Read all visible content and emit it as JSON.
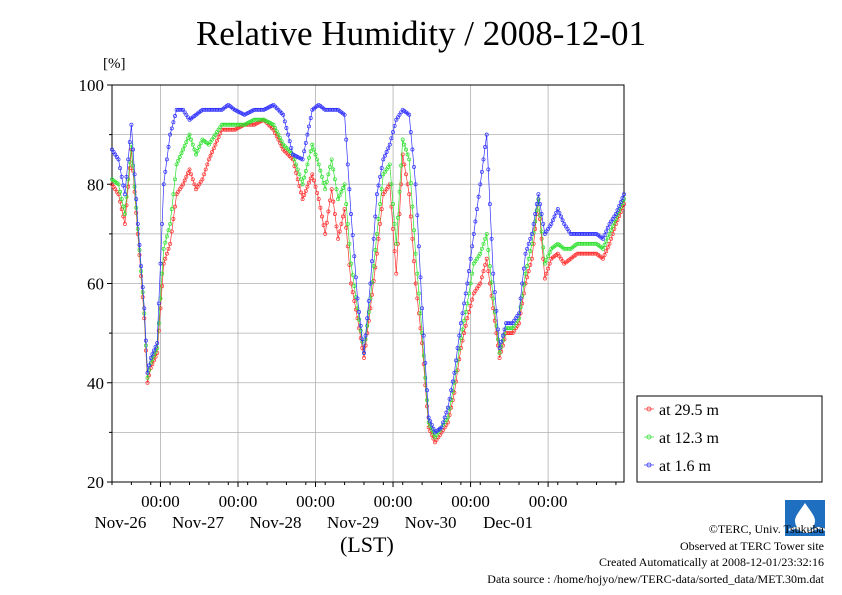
{
  "chart_data": {
    "type": "line",
    "title": "Relative Humidity / 2008-12-01",
    "ylabel": "[%]",
    "xlabel": "(LST)",
    "ylim": [
      20,
      100
    ],
    "yticks": [
      "20",
      "40",
      "60",
      "80",
      "100"
    ],
    "xlim": [
      "2008-11-25T09:00",
      "2008-12-01T23:30"
    ],
    "xticks": [
      {
        "time": "00:00",
        "date": "Nov-26"
      },
      {
        "time": "00:00",
        "date": "Nov-27"
      },
      {
        "time": "00:00",
        "date": "Nov-28"
      },
      {
        "time": "00:00",
        "date": "Nov-29"
      },
      {
        "time": "00:00",
        "date": "Nov-30"
      },
      {
        "time": "00:00",
        "date": "Dec-01"
      }
    ],
    "grid": true,
    "legend_position": "right",
    "series": [
      {
        "name": "at 29.5 m",
        "color": "#ff3030",
        "x": [
          "11-25 09:00",
          "11-25 11:00",
          "11-25 13:00",
          "11-25 15:00",
          "11-25 17:00",
          "11-25 19:00",
          "11-25 20:00",
          "11-25 21:00",
          "11-25 23:00",
          "11-26 01:00",
          "11-26 03:00",
          "11-26 05:00",
          "11-26 07:00",
          "11-26 09:00",
          "11-26 11:00",
          "11-26 13:00",
          "11-26 15:00",
          "11-26 17:00",
          "11-26 19:00",
          "11-26 21:00",
          "11-26 23:00",
          "11-27 02:00",
          "11-27 05:00",
          "11-27 08:00",
          "11-27 11:00",
          "11-27 14:00",
          "11-27 17:00",
          "11-27 20:00",
          "11-27 23:00",
          "11-28 01:00",
          "11-28 03:00",
          "11-28 05:00",
          "11-28 07:00",
          "11-28 09:00",
          "11-28 11:00",
          "11-28 13:00",
          "11-28 15:00",
          "11-28 17:00",
          "11-28 19:00",
          "11-28 21:00",
          "11-28 23:00",
          "11-29 01:00",
          "11-29 03:00",
          "11-29 05:00",
          "11-29 07:00",
          "11-29 09:00",
          "11-29 11:00",
          "11-29 13:00",
          "11-29 15:00",
          "11-29 17:00",
          "11-29 19:00",
          "11-29 21:00",
          "11-29 23:00",
          "11-30 01:00",
          "11-30 03:00",
          "11-30 05:00",
          "11-30 07:00",
          "11-30 09:00",
          "11-30 11:00",
          "11-30 13:00",
          "11-30 15:00",
          "11-30 17:00",
          "11-30 19:00",
          "11-30 21:00",
          "11-30 23:00",
          "12-01 01:00",
          "12-01 03:00",
          "12-01 05:00",
          "12-01 07:00",
          "12-01 09:00",
          "12-01 11:00",
          "12-01 13:00",
          "12-01 15:00",
          "12-01 17:00",
          "12-01 19:00",
          "12-01 21:00",
          "12-01 23:30"
        ],
        "values": [
          80,
          78,
          72,
          87,
          70,
          53,
          40,
          43,
          46,
          64,
          68,
          78,
          80,
          83,
          79,
          81,
          85,
          88,
          91,
          91,
          91,
          92,
          92,
          93,
          91,
          87,
          85,
          77,
          82,
          77,
          70,
          79,
          69,
          75,
          60,
          53,
          45,
          55,
          66,
          78,
          80,
          62,
          86,
          78,
          60,
          48,
          31,
          28,
          30,
          32,
          38,
          47,
          53,
          58,
          60,
          65,
          55,
          45,
          50,
          50,
          52,
          60,
          65,
          77,
          61,
          65,
          66,
          64,
          65,
          66,
          66,
          66,
          66,
          65,
          68,
          72,
          76
        ]
      },
      {
        "name": "at 12.3 m",
        "color": "#30e030",
        "x": [
          "11-25 09:00",
          "11-25 11:00",
          "11-25 13:00",
          "11-25 15:00",
          "11-25 17:00",
          "11-25 19:00",
          "11-25 20:00",
          "11-25 21:00",
          "11-25 23:00",
          "11-26 01:00",
          "11-26 03:00",
          "11-26 05:00",
          "11-26 07:00",
          "11-26 09:00",
          "11-26 11:00",
          "11-26 13:00",
          "11-26 15:00",
          "11-26 17:00",
          "11-26 19:00",
          "11-26 21:00",
          "11-26 23:00",
          "11-27 02:00",
          "11-27 05:00",
          "11-27 08:00",
          "11-27 11:00",
          "11-27 14:00",
          "11-27 17:00",
          "11-27 20:00",
          "11-27 23:00",
          "11-28 01:00",
          "11-28 03:00",
          "11-28 05:00",
          "11-28 07:00",
          "11-28 09:00",
          "11-28 11:00",
          "11-28 13:00",
          "11-28 15:00",
          "11-28 17:00",
          "11-28 19:00",
          "11-28 21:00",
          "11-28 23:00",
          "11-29 01:00",
          "11-29 03:00",
          "11-29 05:00",
          "11-29 07:00",
          "11-29 09:00",
          "11-29 11:00",
          "11-29 13:00",
          "11-29 15:00",
          "11-29 17:00",
          "11-29 19:00",
          "11-29 21:00",
          "11-29 23:00",
          "11-30 01:00",
          "11-30 03:00",
          "11-30 05:00",
          "11-30 07:00",
          "11-30 09:00",
          "11-30 11:00",
          "11-30 13:00",
          "11-30 15:00",
          "11-30 17:00",
          "11-30 19:00",
          "11-30 21:00",
          "11-30 23:00",
          "12-01 01:00",
          "12-01 03:00",
          "12-01 05:00",
          "12-01 07:00",
          "12-01 09:00",
          "12-01 11:00",
          "12-01 13:00",
          "12-01 15:00",
          "12-01 17:00",
          "12-01 19:00",
          "12-01 21:00",
          "12-01 23:30"
        ],
        "values": [
          81,
          80,
          74,
          88,
          71,
          54,
          41,
          44,
          47,
          67,
          72,
          84,
          87,
          90,
          86,
          89,
          88,
          90,
          92,
          92,
          92,
          92,
          93,
          93,
          92,
          88,
          86,
          80,
          88,
          84,
          79,
          85,
          77,
          80,
          64,
          55,
          46,
          57,
          70,
          82,
          84,
          68,
          89,
          85,
          66,
          50,
          32,
          29,
          31,
          33,
          40,
          49,
          56,
          64,
          66,
          70,
          57,
          46,
          51,
          51,
          53,
          62,
          68,
          77,
          64,
          67,
          68,
          67,
          67,
          68,
          68,
          68,
          68,
          67,
          70,
          73,
          77
        ]
      },
      {
        "name": "at 1.6 m",
        "color": "#3030ff",
        "x": [
          "11-25 09:00",
          "11-25 11:00",
          "11-25 13:00",
          "11-25 15:00",
          "11-25 17:00",
          "11-25 19:00",
          "11-25 20:00",
          "11-25 21:00",
          "11-25 23:00",
          "11-26 01:00",
          "11-26 03:00",
          "11-26 05:00",
          "11-26 07:00",
          "11-26 09:00",
          "11-26 11:00",
          "11-26 13:00",
          "11-26 15:00",
          "11-26 17:00",
          "11-26 19:00",
          "11-26 21:00",
          "11-26 23:00",
          "11-27 02:00",
          "11-27 05:00",
          "11-27 08:00",
          "11-27 11:00",
          "11-27 14:00",
          "11-27 17:00",
          "11-27 20:00",
          "11-27 23:00",
          "11-28 01:00",
          "11-28 03:00",
          "11-28 05:00",
          "11-28 07:00",
          "11-28 09:00",
          "11-28 11:00",
          "11-28 13:00",
          "11-28 15:00",
          "11-28 17:00",
          "11-28 19:00",
          "11-28 21:00",
          "11-28 23:00",
          "11-29 01:00",
          "11-29 03:00",
          "11-29 05:00",
          "11-29 07:00",
          "11-29 09:00",
          "11-29 11:00",
          "11-29 13:00",
          "11-29 15:00",
          "11-29 17:00",
          "11-29 19:00",
          "11-29 21:00",
          "11-29 23:00",
          "11-30 01:00",
          "11-30 03:00",
          "11-30 05:00",
          "11-30 07:00",
          "11-30 09:00",
          "11-30 11:00",
          "11-30 13:00",
          "11-30 15:00",
          "11-30 17:00",
          "11-30 19:00",
          "11-30 21:00",
          "11-30 23:00",
          "12-01 01:00",
          "12-01 03:00",
          "12-01 05:00",
          "12-01 07:00",
          "12-01 09:00",
          "12-01 11:00",
          "12-01 13:00",
          "12-01 15:00",
          "12-01 17:00",
          "12-01 19:00",
          "12-01 21:00",
          "12-01 23:30"
        ],
        "values": [
          87,
          85,
          78,
          92,
          72,
          55,
          42,
          45,
          48,
          80,
          90,
          95,
          95,
          93,
          94,
          95,
          95,
          95,
          95,
          96,
          95,
          94,
          95,
          95,
          96,
          94,
          86,
          85,
          95,
          96,
          95,
          95,
          95,
          94,
          74,
          57,
          46,
          60,
          78,
          85,
          88,
          93,
          95,
          94,
          80,
          55,
          33,
          30,
          31,
          35,
          42,
          52,
          60,
          70,
          80,
          90,
          62,
          47,
          52,
          52,
          54,
          66,
          70,
          78,
          70,
          72,
          75,
          72,
          70,
          70,
          70,
          70,
          70,
          69,
          72,
          74,
          78
        ]
      }
    ]
  },
  "credits": {
    "copyright": "©TERC, Univ. Tsukuba",
    "observed": "Observed at TERC Tower site",
    "created": "Created Automatically at 2008-12-01/23:32:16",
    "source": "Data source : /home/hojyo/new/TERC-data/sorted_data/MET.30m.dat"
  }
}
